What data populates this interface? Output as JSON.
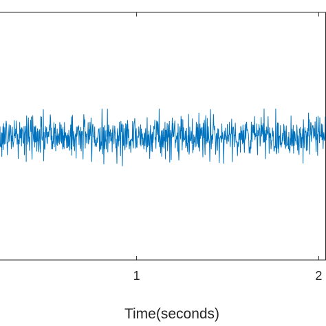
{
  "chart_data": {
    "type": "line",
    "title": "",
    "xlabel": "Time(seconds)",
    "ylabel": "",
    "xlim": [
      0.25,
      2.04
    ],
    "ylim": [
      -1.0,
      1.0
    ],
    "x_ticks": [
      1,
      2
    ],
    "x_tick_labels": [
      "1",
      "2"
    ],
    "grid": false,
    "legend": "none",
    "series": [
      {
        "color": "#0072BD",
        "sample_interval_s": 0.002,
        "x_start": 0.25,
        "x_end": 2.04,
        "mean": 0.0,
        "noise_std": 0.085,
        "min": -0.24,
        "max": 0.22
      }
    ]
  }
}
